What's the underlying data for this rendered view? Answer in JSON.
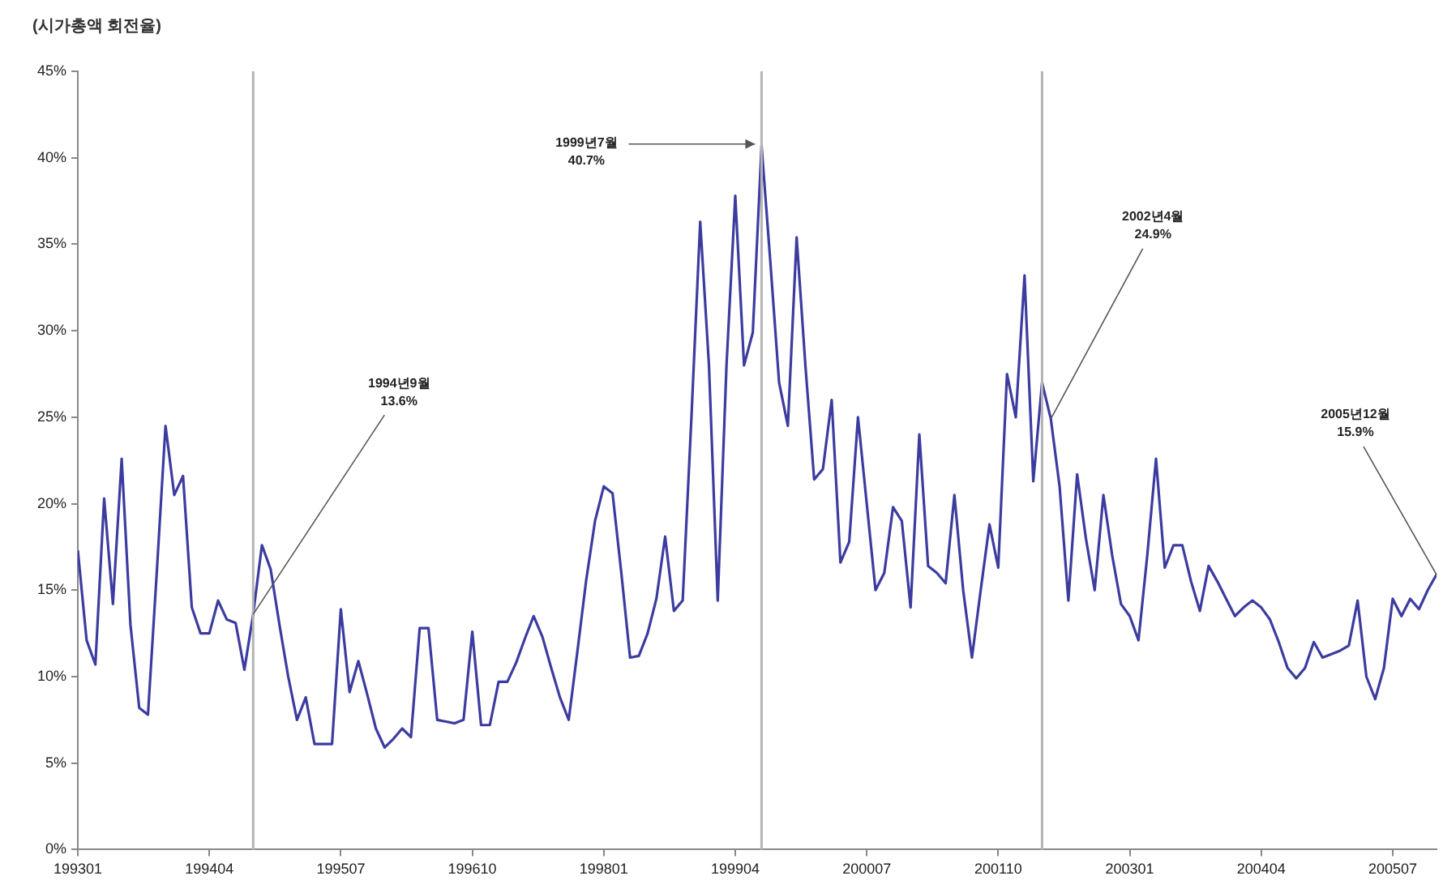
{
  "chart_data": {
    "type": "line",
    "ylabel": "(시가총액 회전율)",
    "x": [
      "1993-01",
      "1993-02",
      "1993-03",
      "1993-04",
      "1993-05",
      "1993-06",
      "1993-07",
      "1993-08",
      "1993-09",
      "1993-10",
      "1993-11",
      "1993-12",
      "1994-01",
      "1994-02",
      "1994-03",
      "1994-04",
      "1994-05",
      "1994-06",
      "1994-07",
      "1994-08",
      "1994-09",
      "1994-10",
      "1994-11",
      "1994-12",
      "1995-01",
      "1995-02",
      "1995-03",
      "1995-04",
      "1995-05",
      "1995-06",
      "1995-07",
      "1995-08",
      "1995-09",
      "1995-10",
      "1995-11",
      "1995-12",
      "1996-01",
      "1996-02",
      "1996-03",
      "1996-04",
      "1996-05",
      "1996-06",
      "1996-07",
      "1996-08",
      "1996-09",
      "1996-10",
      "1996-11",
      "1996-12",
      "1997-01",
      "1997-02",
      "1997-03",
      "1997-04",
      "1997-05",
      "1997-06",
      "1997-07",
      "1997-08",
      "1997-09",
      "1997-10",
      "1997-11",
      "1997-12",
      "1998-01",
      "1998-02",
      "1998-03",
      "1998-04",
      "1998-05",
      "1998-06",
      "1998-07",
      "1998-08",
      "1998-09",
      "1998-10",
      "1998-11",
      "1998-12",
      "1999-01",
      "1999-02",
      "1999-03",
      "1999-04",
      "1999-05",
      "1999-06",
      "1999-07",
      "1999-08",
      "1999-09",
      "1999-10",
      "1999-11",
      "1999-12",
      "2000-01",
      "2000-02",
      "2000-03",
      "2000-04",
      "2000-05",
      "2000-06",
      "2000-07",
      "2000-08",
      "2000-09",
      "2000-10",
      "2000-11",
      "2000-12",
      "2001-01",
      "2001-02",
      "2001-03",
      "2001-04",
      "2001-05",
      "2001-06",
      "2001-07",
      "2001-08",
      "2001-09",
      "2001-10",
      "2001-11",
      "2001-12",
      "2002-01",
      "2002-02",
      "2002-03",
      "2002-04",
      "2002-05",
      "2002-06",
      "2002-07",
      "2002-08",
      "2002-09",
      "2002-10",
      "2002-11",
      "2002-12",
      "2003-01",
      "2003-02",
      "2003-03",
      "2003-04",
      "2003-05",
      "2003-06",
      "2003-07",
      "2003-08",
      "2003-09",
      "2003-10",
      "2003-11",
      "2003-12",
      "2004-01",
      "2004-02",
      "2004-03",
      "2004-04",
      "2004-05",
      "2004-06",
      "2004-07",
      "2004-08",
      "2004-09",
      "2004-10",
      "2004-11",
      "2004-12",
      "2005-01",
      "2005-02",
      "2005-03",
      "2005-04",
      "2005-05",
      "2005-06",
      "2005-07",
      "2005-08",
      "2005-09",
      "2005-10",
      "2005-11",
      "2005-12"
    ],
    "series": [
      {
        "color": "#3c3ca0",
        "values": [
          17.3,
          12.1,
          10.7,
          20.3,
          14.2,
          22.6,
          13,
          8.2,
          7.8,
          16,
          24.5,
          20.5,
          21.6,
          14,
          12.5,
          12.5,
          14.4,
          13.3,
          13.1,
          10.4,
          13.6,
          17.6,
          16.2,
          13,
          10,
          7.5,
          8.8,
          6.1,
          6.1,
          6.1,
          13.9,
          9.1,
          10.9,
          9,
          7,
          5.9,
          6.4,
          7,
          6.5,
          12.8,
          12.8,
          7.5,
          7.4,
          7.3,
          7.5,
          12.6,
          7.2,
          7.2,
          9.7,
          9.7,
          10.8,
          12.2,
          13.5,
          12.3,
          10.5,
          8.8,
          7.5,
          11.5,
          15.6,
          19,
          21,
          20.6,
          16,
          11.1,
          11.2,
          12.5,
          14.5,
          18.1,
          13.8,
          14.4,
          25,
          36.3,
          28,
          14.4,
          28,
          37.8,
          28,
          29.9,
          40.7,
          34,
          27,
          24.5,
          35.4,
          28,
          21.4,
          22,
          26,
          16.6,
          17.8,
          25,
          20,
          15,
          16,
          19.8,
          19,
          14,
          24,
          16.4,
          16,
          15.4,
          20.5,
          15,
          11.1,
          15,
          18.8,
          16.3,
          27.5,
          25,
          33.2,
          21.3,
          27,
          24.9,
          21,
          14.4,
          21.7,
          18,
          15,
          20.5,
          17,
          14.2,
          13.5,
          12.1,
          17,
          22.6,
          16.3,
          17.6,
          17.6,
          15.5,
          13.8,
          16.4,
          15.5,
          14.5,
          13.5,
          14,
          14.4,
          14,
          13.3,
          12,
          10.5,
          9.9,
          10.5,
          12,
          11.1,
          11.3,
          11.5,
          11.8,
          14.4,
          10,
          8.7,
          10.5,
          14.5,
          13.5,
          14.5,
          13.9,
          15,
          15.9
        ]
      }
    ],
    "xlim": [
      "1993-01",
      "2005-12"
    ],
    "xticks": [
      {
        "value": "1993-01",
        "label": "199301"
      },
      {
        "value": "1994-04",
        "label": "199404"
      },
      {
        "value": "1995-07",
        "label": "199507"
      },
      {
        "value": "1996-10",
        "label": "199610"
      },
      {
        "value": "1998-01",
        "label": "199801"
      },
      {
        "value": "1999-04",
        "label": "199904"
      },
      {
        "value": "2000-07",
        "label": "200007"
      },
      {
        "value": "2001-10",
        "label": "200110"
      },
      {
        "value": "2003-01",
        "label": "200301"
      },
      {
        "value": "2004-04",
        "label": "200404"
      },
      {
        "value": "2005-07",
        "label": "200507"
      }
    ],
    "ylim": [
      0,
      45
    ],
    "yticks": [
      {
        "value": 0,
        "label": "0%"
      },
      {
        "value": 5,
        "label": "5%"
      },
      {
        "value": 10,
        "label": "10%"
      },
      {
        "value": 15,
        "label": "15%"
      },
      {
        "value": 20,
        "label": "20%"
      },
      {
        "value": 25,
        "label": "25%"
      },
      {
        "value": 30,
        "label": "30%"
      },
      {
        "value": 35,
        "label": "35%"
      },
      {
        "value": 40,
        "label": "40%"
      },
      {
        "value": 45,
        "label": "45%"
      }
    ],
    "ref_lines": [
      {
        "axis": "x",
        "value": "1994-09",
        "color": "#b4b4b4"
      },
      {
        "axis": "x",
        "value": "1999-07",
        "color": "#b4b4b4"
      },
      {
        "axis": "x",
        "value": "2002-03",
        "color": "#b4b4b4"
      }
    ],
    "annotations": [
      {
        "text": "1994년9월\n13.6%",
        "x": "1994-09",
        "y": 13.6
      },
      {
        "text": "1999년7월\n40.7%",
        "x": "1999-07",
        "y": 40.7
      },
      {
        "text": "2002년4월\n24.9%",
        "x": "2002-04",
        "y": 24.9
      },
      {
        "text": "2005년12월\n15.9%",
        "x": "2005-12",
        "y": 15.9
      }
    ],
    "grid": false,
    "legend": false,
    "marker": "none",
    "line_style": "solid"
  }
}
